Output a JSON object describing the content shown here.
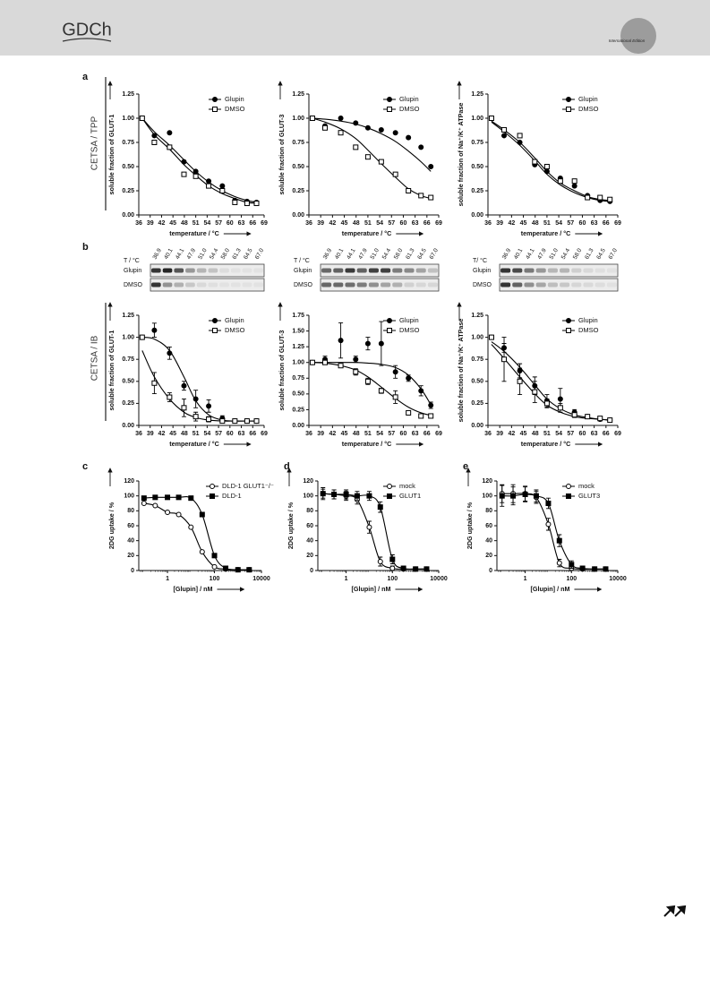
{
  "header": {
    "logo": "GDCh",
    "edition": "International Edition"
  },
  "panel_labels": [
    "a",
    "b",
    "c",
    "d",
    "e"
  ],
  "section_labels": [
    "CETSA / TPP",
    "CETSA / IB"
  ],
  "blots": [
    {
      "header": "T / °C",
      "lanes": [
        "36.9",
        "40.1",
        "44.1",
        "47.9",
        "51.0",
        "54.4",
        "58.0",
        "61.3",
        "64.5",
        "67.0"
      ]
    },
    {
      "header": "T / °C",
      "lanes": [
        "36.9",
        "40.1",
        "44.1",
        "47.9",
        "51.0",
        "54.4",
        "58.0",
        "61.3",
        "64.5",
        "67.0"
      ]
    },
    {
      "header": "T/ °C",
      "lanes": [
        "36.9",
        "40.1",
        "44.1",
        "47.9",
        "51.0",
        "54.4",
        "58.0",
        "61.3",
        "64.5",
        "67.0"
      ]
    }
  ],
  "chart_data": [
    {
      "type": "scatter",
      "xlabel": "temperature / °C",
      "ylabel": "soluble fraction of GLUT-1",
      "x": [
        36.9,
        40.1,
        44.1,
        47.9,
        51.0,
        54.4,
        58.0,
        61.3,
        64.5,
        67.0
      ],
      "xlim": [
        36,
        69
      ],
      "xticks": [
        36,
        39,
        42,
        45,
        48,
        51,
        54,
        57,
        60,
        63,
        66,
        69
      ],
      "ylim": [
        0,
        1.25
      ],
      "yticks": [
        {
          "value": 0,
          "label": "0.00"
        },
        0.25,
        {
          "value": 0.5,
          "label": "0.50"
        },
        0.75,
        {
          "value": 1,
          "label": "1.00"
        },
        1.25
      ],
      "legend": "upper right",
      "series": [
        {
          "name": "Glupin",
          "color": "#000000",
          "marker": "circle",
          "filled": true,
          "values": [
            1.0,
            0.82,
            0.85,
            0.55,
            0.45,
            0.35,
            0.3,
            0.15,
            0.14,
            0.13
          ],
          "fit": [
            1.0,
            0.86,
            0.72,
            0.57,
            0.45,
            0.34,
            0.25,
            0.19,
            0.15,
            0.13
          ]
        },
        {
          "name": "DMSO",
          "color": "#000000",
          "marker": "square",
          "filled": false,
          "values": [
            1.0,
            0.75,
            0.7,
            0.42,
            0.4,
            0.3,
            0.25,
            0.13,
            0.12,
            0.12
          ],
          "fit": [
            1.0,
            0.83,
            0.68,
            0.52,
            0.41,
            0.3,
            0.22,
            0.17,
            0.13,
            0.12
          ]
        }
      ]
    },
    {
      "type": "scatter",
      "xlabel": "temperature / °C",
      "ylabel": "soluble fraction of GLUT-3",
      "x": [
        36.9,
        40.1,
        44.1,
        47.9,
        51.0,
        54.4,
        58.0,
        61.3,
        64.5,
        67.0
      ],
      "xlim": [
        36,
        69
      ],
      "xticks": [
        36,
        39,
        42,
        45,
        48,
        51,
        54,
        57,
        60,
        63,
        66,
        69
      ],
      "ylim": [
        0,
        1.25
      ],
      "yticks": [
        {
          "value": 0,
          "label": "0.00"
        },
        0.25,
        {
          "value": 0.5,
          "label": "0.50"
        },
        0.75,
        {
          "value": 1,
          "label": "1.00"
        },
        1.25
      ],
      "legend": "upper right",
      "series": [
        {
          "name": "Glupin",
          "color": "#000000",
          "marker": "circle",
          "filled": true,
          "values": [
            1.0,
            0.92,
            1.0,
            0.95,
            0.9,
            0.88,
            0.85,
            0.8,
            0.7,
            0.5
          ],
          "fit": [
            1.0,
            0.99,
            0.97,
            0.94,
            0.9,
            0.84,
            0.76,
            0.66,
            0.55,
            0.45
          ]
        },
        {
          "name": "DMSO",
          "color": "#000000",
          "marker": "square",
          "filled": false,
          "values": [
            1.0,
            0.9,
            0.85,
            0.7,
            0.6,
            0.55,
            0.42,
            0.25,
            0.2,
            0.18
          ],
          "fit": [
            1.0,
            0.96,
            0.89,
            0.79,
            0.67,
            0.53,
            0.39,
            0.27,
            0.2,
            0.17
          ]
        }
      ]
    },
    {
      "type": "scatter",
      "xlabel": "temperature / °C",
      "ylabel": "soluble fraction of Na⁺/K⁺ ATPase",
      "x": [
        36.9,
        40.1,
        44.1,
        47.9,
        51.0,
        54.4,
        58.0,
        61.3,
        64.5,
        67.0
      ],
      "xlim": [
        36,
        69
      ],
      "xticks": [
        36,
        39,
        42,
        45,
        48,
        51,
        54,
        57,
        60,
        63,
        66,
        69
      ],
      "ylim": [
        0,
        1.25
      ],
      "yticks": [
        {
          "value": 0,
          "label": "0.00"
        },
        0.25,
        {
          "value": 0.5,
          "label": "0.50"
        },
        0.75,
        {
          "value": 1,
          "label": "1.00"
        },
        1.25
      ],
      "legend": "upper right",
      "series": [
        {
          "name": "Glupin",
          "color": "#000000",
          "marker": "circle",
          "filled": true,
          "values": [
            1.0,
            0.82,
            0.75,
            0.52,
            0.45,
            0.38,
            0.3,
            0.2,
            0.15,
            0.14
          ],
          "fit": [
            0.96,
            0.86,
            0.72,
            0.56,
            0.42,
            0.31,
            0.23,
            0.18,
            0.15,
            0.14
          ]
        },
        {
          "name": "DMSO",
          "color": "#000000",
          "marker": "square",
          "filled": false,
          "values": [
            1.0,
            0.88,
            0.82,
            0.55,
            0.5,
            0.35,
            0.35,
            0.18,
            0.18,
            0.16
          ],
          "fit": [
            0.97,
            0.88,
            0.75,
            0.59,
            0.45,
            0.33,
            0.25,
            0.19,
            0.16,
            0.15
          ]
        }
      ]
    },
    {
      "type": "scatter",
      "xlabel": "temperature / °C",
      "ylabel": "soluble fraction of GLUT-1",
      "x": [
        36.9,
        40.1,
        44.1,
        47.9,
        51.0,
        54.4,
        58.0,
        61.3,
        64.5,
        67.0
      ],
      "xlim": [
        36,
        69
      ],
      "xticks": [
        36,
        39,
        42,
        45,
        48,
        51,
        54,
        57,
        60,
        63,
        66,
        69
      ],
      "ylim": [
        0,
        1.25
      ],
      "yticks": [
        {
          "value": 0,
          "label": "0.00"
        },
        0.25,
        {
          "value": 0.5,
          "label": "0.50"
        },
        0.75,
        {
          "value": 1,
          "label": "1.00"
        },
        1.25
      ],
      "legend": "upper right",
      "series": [
        {
          "name": "Glupin",
          "color": "#000000",
          "marker": "circle",
          "filled": true,
          "values": [
            1.0,
            1.08,
            0.82,
            0.45,
            0.3,
            0.22,
            0.08,
            0.05,
            0.05,
            0.05
          ],
          "errors": [
            0,
            0.08,
            0.07,
            0.05,
            0.1,
            0.07,
            0.03,
            0.02,
            0.02,
            0.02
          ],
          "fit": [
            1.0,
            0.98,
            0.85,
            0.55,
            0.28,
            0.12,
            0.06,
            0.05,
            0.05,
            0.05
          ]
        },
        {
          "name": "DMSO",
          "color": "#000000",
          "marker": "square",
          "filled": false,
          "values": [
            1.0,
            0.48,
            0.32,
            0.2,
            0.1,
            0.07,
            0.05,
            0.05,
            0.05,
            0.05
          ],
          "errors": [
            0,
            0.12,
            0.05,
            0.1,
            0.05,
            0.03,
            0.02,
            0.02,
            0.02,
            0.02
          ],
          "fit": [
            0.85,
            0.55,
            0.3,
            0.15,
            0.09,
            0.06,
            0.05,
            0.05,
            0.05,
            0.05
          ]
        }
      ]
    },
    {
      "type": "scatter",
      "xlabel": "temperature / °C",
      "ylabel": "soluble fraction of GLUT-3",
      "x": [
        36.9,
        40.1,
        44.1,
        47.9,
        51.0,
        54.4,
        58.0,
        61.3,
        64.5,
        67.0
      ],
      "xlim": [
        36,
        69
      ],
      "xticks": [
        36,
        39,
        42,
        45,
        48,
        51,
        54,
        57,
        60,
        63,
        66,
        69
      ],
      "ylim": [
        0,
        1.75
      ],
      "yticks": [
        {
          "value": 0,
          "label": "0.00"
        },
        0.25,
        {
          "value": 0.5,
          "label": "0.50"
        },
        0.75,
        {
          "value": 1,
          "label": "1.00"
        },
        1.25,
        {
          "value": 1.5,
          "label": "1.50"
        },
        1.75
      ],
      "legend": "upper right",
      "series": [
        {
          "name": "Glupin",
          "color": "#000000",
          "marker": "circle",
          "filled": true,
          "values": [
            1.0,
            1.05,
            1.35,
            1.05,
            1.3,
            1.3,
            0.85,
            0.75,
            0.55,
            0.32
          ],
          "errors": [
            0,
            0.05,
            0.28,
            0.05,
            0.1,
            0.35,
            0.1,
            0.05,
            0.08,
            0.05
          ],
          "fit": [
            1.0,
            1.0,
            1.0,
            1.0,
            0.99,
            0.97,
            0.92,
            0.8,
            0.58,
            0.33
          ]
        },
        {
          "name": "DMSO",
          "color": "#000000",
          "marker": "square",
          "filled": false,
          "values": [
            1.0,
            1.0,
            0.95,
            0.85,
            0.7,
            0.55,
            0.45,
            0.2,
            0.15,
            0.15
          ],
          "errors": [
            0,
            0.03,
            0.03,
            0.05,
            0.05,
            0.04,
            0.1,
            0.03,
            0.03,
            0.03
          ],
          "fit": [
            1.0,
            0.99,
            0.95,
            0.88,
            0.77,
            0.61,
            0.43,
            0.29,
            0.2,
            0.16
          ]
        }
      ]
    },
    {
      "type": "scatter",
      "xlabel": "temperature / °C",
      "ylabel": "soluble fraction of Na⁺/K⁺ ATPase",
      "x": [
        36.9,
        40.1,
        44.1,
        47.9,
        51.0,
        54.4,
        58.0,
        61.3,
        64.5,
        67.0
      ],
      "xlim": [
        36,
        69
      ],
      "xticks": [
        36,
        39,
        42,
        45,
        48,
        51,
        54,
        57,
        60,
        63,
        66,
        69
      ],
      "ylim": [
        0,
        1.25
      ],
      "yticks": [
        {
          "value": 0,
          "label": "0.00"
        },
        0.25,
        {
          "value": 0.5,
          "label": "0.50"
        },
        0.75,
        {
          "value": 1,
          "label": "1.00"
        },
        1.25
      ],
      "legend": "upper right",
      "series": [
        {
          "name": "Glupin",
          "color": "#000000",
          "marker": "circle",
          "filled": true,
          "values": [
            1.0,
            0.88,
            0.62,
            0.45,
            0.28,
            0.3,
            0.15,
            0.1,
            0.07,
            0.06
          ],
          "errors": [
            0,
            0.05,
            0.08,
            0.1,
            0.07,
            0.12,
            0.03,
            0.02,
            0.02,
            0.02
          ],
          "fit": [
            0.95,
            0.84,
            0.66,
            0.46,
            0.3,
            0.19,
            0.12,
            0.09,
            0.07,
            0.06
          ]
        },
        {
          "name": "DMSO",
          "color": "#000000",
          "marker": "square",
          "filled": false,
          "values": [
            1.0,
            0.75,
            0.5,
            0.38,
            0.25,
            0.2,
            0.12,
            0.1,
            0.08,
            0.06
          ],
          "errors": [
            0,
            0.25,
            0.15,
            0.12,
            0.05,
            0.05,
            0.03,
            0.02,
            0.02,
            0.02
          ],
          "fit": [
            0.92,
            0.76,
            0.55,
            0.36,
            0.23,
            0.15,
            0.1,
            0.08,
            0.07,
            0.06
          ]
        }
      ]
    },
    {
      "type": "scatter",
      "xlabel": "[Glupin] / nM",
      "ylabel": "2DG uptake / %",
      "xlog": true,
      "x": [
        0.1,
        0.3,
        1,
        3,
        10,
        30,
        100,
        300,
        1000,
        3000
      ],
      "xlim": [
        0.06,
        10000
      ],
      "xticks": [
        1,
        100,
        10000
      ],
      "ylim": [
        0,
        120
      ],
      "yticks": [
        0,
        20,
        40,
        60,
        80,
        100,
        120
      ],
      "legend": "upper right",
      "series": [
        {
          "name": "DLD-1 GLUT1⁻/⁻",
          "color": "#000000",
          "marker": "circle",
          "filled": false,
          "values": [
            90,
            87,
            78,
            75,
            58,
            25,
            5,
            2,
            1,
            1
          ]
        },
        {
          "name": "DLD-1",
          "color": "#000000",
          "marker": "square",
          "filled": true,
          "values": [
            97,
            98,
            98,
            98,
            97,
            75,
            20,
            3,
            1,
            1
          ]
        }
      ]
    },
    {
      "type": "scatter",
      "xlabel": "[Glupin] / nM",
      "ylabel": "2DG uptake / %",
      "xlog": true,
      "x": [
        0.1,
        0.3,
        1,
        3,
        10,
        30,
        100,
        300,
        1000,
        3000
      ],
      "xlim": [
        0.06,
        10000
      ],
      "xticks": [
        1,
        100,
        10000
      ],
      "ylim": [
        0,
        120
      ],
      "yticks": [
        0,
        20,
        40,
        60,
        80,
        100,
        120
      ],
      "legend": "upper right",
      "series": [
        {
          "name": "mock",
          "color": "#000000",
          "marker": "circle",
          "filled": false,
          "values": [
            103,
            102,
            100,
            95,
            58,
            12,
            3,
            2,
            2,
            2
          ],
          "errors": [
            8,
            6,
            6,
            6,
            8,
            6,
            3,
            2,
            2,
            2
          ]
        },
        {
          "name": "GLUT1",
          "color": "#000000",
          "marker": "square",
          "filled": true,
          "values": [
            103,
            102,
            102,
            100,
            100,
            85,
            15,
            3,
            2,
            2
          ],
          "errors": [
            6,
            6,
            6,
            6,
            6,
            7,
            6,
            3,
            2,
            2
          ]
        }
      ]
    },
    {
      "type": "scatter",
      "xlabel": "[Glupin] / nM",
      "ylabel": "2DG uptake / %",
      "xlog": true,
      "x": [
        0.1,
        0.3,
        1,
        3,
        10,
        30,
        100,
        300,
        1000,
        3000
      ],
      "xlim": [
        0.06,
        10000
      ],
      "xticks": [
        1,
        100,
        10000
      ],
      "ylim": [
        0,
        120
      ],
      "yticks": [
        0,
        20,
        40,
        60,
        80,
        100,
        120
      ],
      "legend": "upper right",
      "series": [
        {
          "name": "mock",
          "color": "#000000",
          "marker": "circle",
          "filled": false,
          "values": [
            103,
            103,
            103,
            98,
            62,
            10,
            3,
            2,
            2,
            2
          ],
          "errors": [
            12,
            12,
            10,
            8,
            8,
            5,
            3,
            2,
            2,
            2
          ]
        },
        {
          "name": "GLUT3",
          "color": "#000000",
          "marker": "square",
          "filled": true,
          "values": [
            100,
            100,
            102,
            100,
            90,
            40,
            8,
            3,
            2,
            2
          ],
          "errors": [
            14,
            12,
            10,
            8,
            7,
            8,
            5,
            3,
            2,
            2
          ]
        }
      ]
    }
  ]
}
